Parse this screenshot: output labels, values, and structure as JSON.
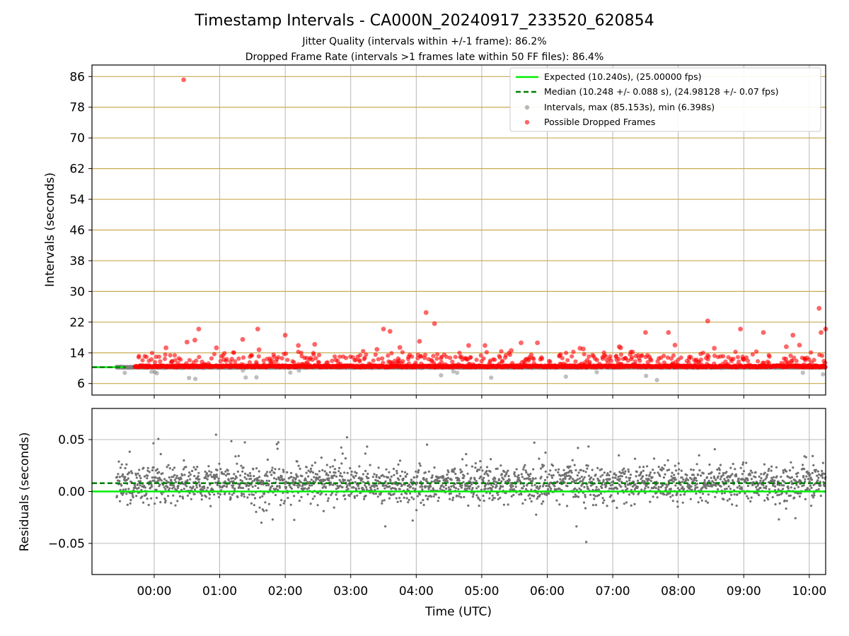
{
  "figure": {
    "title": "Timestamp Intervals - CA000N_20240917_233520_620854",
    "subtitle_1": "Jitter Quality (intervals within +/-1 frame): 86.2%",
    "subtitle_2": "Dropped Frame Rate (intervals >1 frames late within 50 FF files): 86.4%"
  },
  "colors": {
    "expected": "#00ee00",
    "median": "#008000",
    "intervals": "#808080",
    "dropped": "#ff0000",
    "hline": "#c8aa50",
    "grid": "#b0b0b0"
  },
  "chart_data": [
    {
      "type": "scatter",
      "ylabel": "Intervals (seconds)",
      "xlim_hours": [
        -0.95,
        10.25
      ],
      "ylim": [
        3.0,
        89.0
      ],
      "yticks": [
        6,
        14,
        22,
        30,
        38,
        46,
        54,
        62,
        70,
        78,
        86
      ],
      "yticks_labels": [
        "6",
        "14",
        "22",
        "30",
        "38",
        "46",
        "54",
        "62",
        "70",
        "78",
        "86"
      ],
      "xticks_hours": [
        0,
        1,
        2,
        3,
        4,
        5,
        6,
        7,
        8,
        9,
        10
      ],
      "horizontal_lines": [
        6,
        14,
        22,
        30,
        38,
        46,
        54,
        62,
        70,
        78,
        86
      ],
      "expected": {
        "value": 10.24,
        "label": "Expected (10.240s), (25.00000 fps)"
      },
      "median": {
        "value": 10.248,
        "label": "Median (10.248 +/- 0.088 s), (24.98128 +/- 0.07 fps)"
      },
      "series_labels": {
        "intervals": "Intervals, max (85.153s), min (6.398s)",
        "dropped": "Possible Dropped Frames"
      },
      "legend_position": "upper right",
      "grid": true,
      "time_range_hours": [
        -0.58,
        10.25
      ],
      "intervals_extremes": {
        "max": 85.153,
        "min": 6.398
      },
      "dropped_points": [
        [
          0.45,
          85.15
        ],
        [
          4.15,
          24.5
        ],
        [
          4.28,
          21.6
        ],
        [
          8.45,
          22.3
        ],
        [
          10.15,
          25.6
        ],
        [
          10.25,
          20.2
        ],
        [
          10.18,
          19.3
        ],
        [
          0.68,
          20.2
        ],
        [
          1.58,
          20.2
        ],
        [
          2.0,
          18.6
        ],
        [
          3.5,
          20.2
        ],
        [
          3.6,
          19.6
        ],
        [
          8.95,
          20.2
        ],
        [
          7.5,
          19.3
        ],
        [
          7.85,
          19.3
        ],
        [
          9.3,
          19.3
        ],
        [
          9.75,
          18.6
        ],
        [
          0.5,
          16.8
        ],
        [
          0.62,
          17.3
        ],
        [
          1.35,
          17.5
        ],
        [
          2.2,
          15.9
        ],
        [
          2.45,
          16.2
        ],
        [
          4.05,
          17.0
        ],
        [
          4.8,
          15.9
        ],
        [
          5.05,
          15.9
        ],
        [
          5.6,
          16.6
        ],
        [
          5.85,
          16.6
        ],
        [
          6.5,
          15.2
        ],
        [
          7.1,
          15.6
        ],
        [
          7.12,
          15.3
        ],
        [
          7.95,
          16.0
        ],
        [
          8.55,
          15.2
        ],
        [
          9.85,
          16.0
        ],
        [
          9.65,
          15.6
        ],
        [
          0.18,
          15.3
        ],
        [
          0.95,
          15.3
        ],
        [
          1.6,
          14.8
        ],
        [
          3.4,
          14.9
        ],
        [
          3.75,
          15.4
        ],
        [
          5.45,
          14.6
        ],
        [
          6.55,
          15.0
        ],
        [
          7.3,
          14.2
        ]
      ]
    },
    {
      "type": "scatter",
      "ylabel": "Residuals (seconds)",
      "xlabel": "Time (UTC)",
      "xlim_hours": [
        -0.95,
        10.25
      ],
      "ylim": [
        -0.08,
        0.08
      ],
      "yticks": [
        -0.05,
        0.0,
        0.05
      ],
      "yticks_labels": [
        "−0.05",
        "0.00",
        "0.05"
      ],
      "xticks_hours": [
        0,
        1,
        2,
        3,
        4,
        5,
        6,
        7,
        8,
        9,
        10
      ],
      "xticks_labels": [
        "00:00",
        "01:00",
        "02:00",
        "03:00",
        "04:00",
        "05:00",
        "06:00",
        "07:00",
        "08:00",
        "09:00",
        "10:00"
      ],
      "expected_residual": 0.0,
      "median_residual": 0.008,
      "grid": true,
      "time_range_hours": [
        -0.58,
        10.25
      ],
      "residual_spread": 0.012
    }
  ]
}
